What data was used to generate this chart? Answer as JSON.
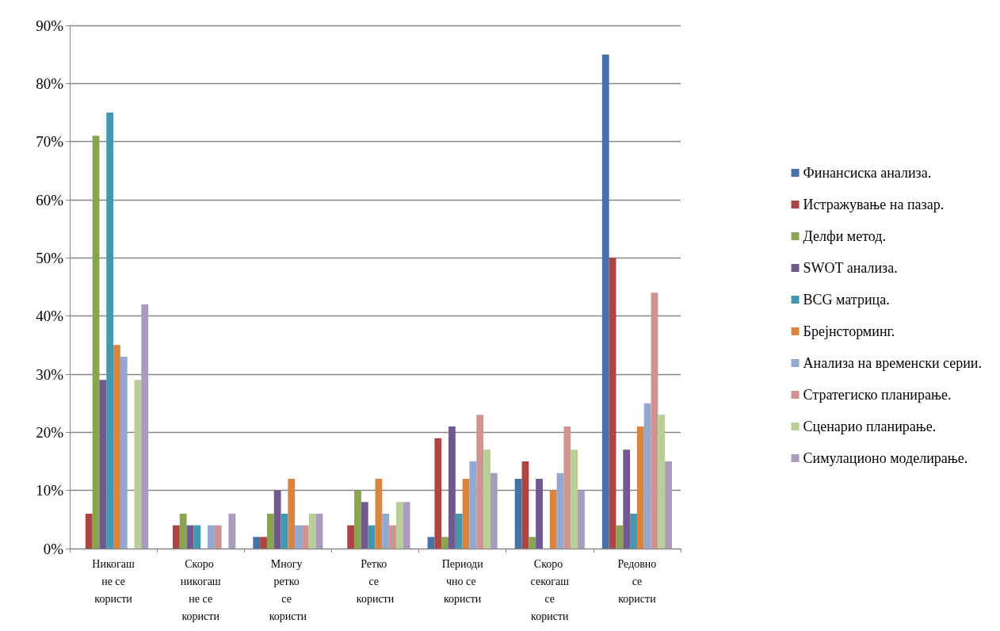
{
  "chart_data": {
    "type": "bar",
    "categories": [
      "Никогаш не се користи",
      "Скоро никогаш не се користи",
      "Многу ретко се користи",
      "Ретко се користи",
      "Периодично се користи",
      "Скоро секогаш се користи",
      "Редовно се користи"
    ],
    "series": [
      {
        "name": "Финансиска анализа.",
        "color": "#4572a7",
        "values": [
          0,
          0,
          2,
          0,
          2,
          12,
          85
        ]
      },
      {
        "name": "Истражување на пазар.",
        "color": "#aa4643",
        "values": [
          6,
          4,
          2,
          4,
          19,
          15,
          50
        ]
      },
      {
        "name": "Делфи метод.",
        "color": "#89a54e",
        "values": [
          71,
          6,
          6,
          10,
          2,
          2,
          4
        ]
      },
      {
        "name": "SWOT анализа.",
        "color": "#71588f",
        "values": [
          29,
          4,
          10,
          8,
          21,
          12,
          17
        ]
      },
      {
        "name": "BCG матрица.",
        "color": "#4198af",
        "values": [
          75,
          4,
          6,
          4,
          6,
          0,
          6
        ]
      },
      {
        "name": "Брејнсторминг.",
        "color": "#db843d",
        "values": [
          35,
          0,
          12,
          12,
          12,
          10,
          21
        ]
      },
      {
        "name": "Анализа на временски серии.",
        "color": "#93a9cf",
        "values": [
          33,
          4,
          4,
          6,
          15,
          13,
          25
        ]
      },
      {
        "name": "Стратегиско планирање.",
        "color": "#d19392",
        "values": [
          0,
          4,
          4,
          4,
          23,
          21,
          44
        ]
      },
      {
        "name": "Сценарио планирање.",
        "color": "#b9cd96",
        "values": [
          29,
          0,
          6,
          8,
          17,
          17,
          23
        ]
      },
      {
        "name": "Симулационо моделирање.",
        "color": "#a99bbd",
        "values": [
          42,
          6,
          6,
          8,
          13,
          10,
          15
        ]
      }
    ],
    "ylim": [
      0,
      90
    ],
    "yticks": [
      {
        "value": 0,
        "label": "0%"
      },
      {
        "value": 10,
        "label": "10%"
      },
      {
        "value": 20,
        "label": "20%"
      },
      {
        "value": 30,
        "label": "30%"
      },
      {
        "value": 40,
        "label": "40%"
      },
      {
        "value": 50,
        "label": "50%"
      },
      {
        "value": 60,
        "label": "60%"
      },
      {
        "value": 70,
        "label": "70%"
      },
      {
        "value": 80,
        "label": "80%"
      },
      {
        "value": 90,
        "label": "90%"
      }
    ],
    "grid": "y",
    "legend": "right"
  }
}
